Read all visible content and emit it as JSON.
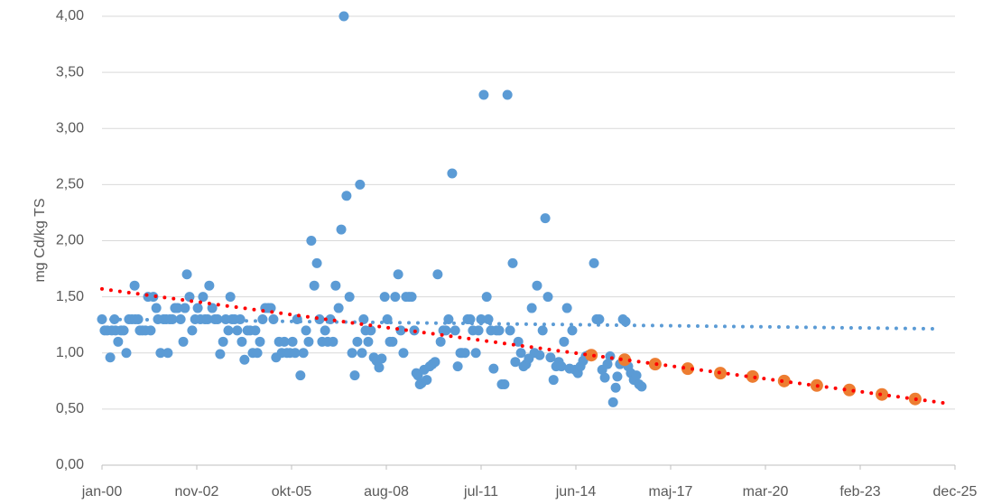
{
  "chart_data": {
    "type": "scatter",
    "y_label": "mg Cd/kg TS",
    "xlim": [
      2000,
      2025.92
    ],
    "ylim": [
      0,
      4
    ],
    "xticks": [
      {
        "value": 2000,
        "label": "jan-00"
      },
      {
        "value": 2002.88,
        "label": "nov-02"
      },
      {
        "value": 2005.76,
        "label": "okt-05"
      },
      {
        "value": 2008.64,
        "label": "aug-08"
      },
      {
        "value": 2011.52,
        "label": "jul-11"
      },
      {
        "value": 2014.4,
        "label": "jun-14"
      },
      {
        "value": 2017.28,
        "label": "maj-17"
      },
      {
        "value": 2020.16,
        "label": "mar-20"
      },
      {
        "value": 2023.04,
        "label": "feb-23"
      },
      {
        "value": 2025.92,
        "label": "dec-25"
      }
    ],
    "yticks": [
      {
        "value": 0,
        "label": "0,00"
      },
      {
        "value": 0.5,
        "label": "0,50"
      },
      {
        "value": 1,
        "label": "1,00"
      },
      {
        "value": 1.5,
        "label": "1,50"
      },
      {
        "value": 2,
        "label": "2,00"
      },
      {
        "value": 2.5,
        "label": "2,50"
      },
      {
        "value": 3,
        "label": "3,00"
      },
      {
        "value": 3.5,
        "label": "3,50"
      },
      {
        "value": 4,
        "label": "4,00"
      }
    ],
    "grid": true,
    "series": [
      {
        "mode": "markers",
        "color": "#5b9bd5",
        "x": [
          2000.0,
          2000.08,
          2000.16,
          2000.25,
          2000.3,
          2000.38,
          2000.41,
          2000.49,
          2000.58,
          2000.66,
          2000.74,
          2000.82,
          2000.91,
          2000.99,
          2001.01,
          2001.1,
          2001.15,
          2001.23,
          2001.32,
          2001.4,
          2001.48,
          2001.56,
          2001.65,
          2001.7,
          2001.78,
          2001.87,
          2001.95,
          2002.0,
          2002.06,
          2002.14,
          2002.22,
          2002.3,
          2002.39,
          2002.47,
          2002.52,
          2002.58,
          2002.66,
          2002.74,
          2002.83,
          2002.91,
          2002.99,
          2003.07,
          2003.13,
          2003.21,
          2003.26,
          2003.35,
          2003.43,
          2003.51,
          2003.59,
          2003.68,
          2003.76,
          2003.84,
          2003.9,
          2003.95,
          2004.03,
          2004.11,
          2004.2,
          2004.25,
          2004.33,
          2004.42,
          2004.5,
          2004.58,
          2004.66,
          2004.72,
          2004.8,
          2004.88,
          2004.96,
          2005.05,
          2005.13,
          2005.21,
          2005.29,
          2005.38,
          2005.46,
          2005.54,
          2005.62,
          2005.71,
          2005.79,
          2005.87,
          2005.93,
          2006.03,
          2006.12,
          2006.2,
          2006.28,
          2006.36,
          2006.45,
          2006.53,
          2006.61,
          2006.69,
          2006.78,
          2006.86,
          2006.94,
          2007.02,
          2007.1,
          2007.19,
          2007.27,
          2007.35,
          2007.43,
          2007.52,
          2007.6,
          2007.68,
          2007.76,
          2007.84,
          2007.9,
          2007.95,
          2008.01,
          2008.09,
          2008.17,
          2008.26,
          2008.34,
          2008.42,
          2008.5,
          2008.59,
          2008.67,
          2008.75,
          2008.83,
          2008.91,
          2009.0,
          2009.08,
          2009.16,
          2009.24,
          2009.33,
          2009.41,
          2009.49,
          2009.55,
          2009.6,
          2009.66,
          2009.71,
          2009.79,
          2009.87,
          2009.96,
          2010.04,
          2010.12,
          2010.2,
          2010.29,
          2010.37,
          2010.45,
          2010.53,
          2010.64,
          2010.73,
          2010.81,
          2010.89,
          2010.94,
          2011.03,
          2011.11,
          2011.19,
          2011.27,
          2011.36,
          2011.44,
          2011.52,
          2011.6,
          2011.69,
          2011.74,
          2011.82,
          2011.9,
          2011.99,
          2012.07,
          2012.15,
          2012.23,
          2012.32,
          2012.4,
          2012.48,
          2012.56,
          2012.65,
          2012.73,
          2012.81,
          2012.89,
          2012.97,
          2013.06,
          2013.14,
          2013.22,
          2013.3,
          2013.39,
          2013.47,
          2013.55,
          2013.63,
          2013.72,
          2013.8,
          2013.88,
          2013.96,
          2014.04,
          2014.13,
          2014.21,
          2014.29,
          2014.37,
          2014.46,
          2014.54,
          2014.62,
          2014.7,
          2014.78,
          2014.87,
          2014.95,
          2015.03,
          2015.11,
          2015.2,
          2015.28,
          2015.36,
          2015.44,
          2015.53,
          2015.61,
          2015.66,
          2015.74,
          2015.83,
          2015.91,
          2015.99,
          2016.07,
          2016.16,
          2016.24,
          2016.32,
          2016.4
        ],
        "values": [
          1.3,
          1.2,
          1.2,
          0.96,
          1.2,
          1.3,
          1.2,
          1.1,
          1.2,
          1.2,
          1.0,
          1.3,
          1.3,
          1.6,
          1.3,
          1.3,
          1.2,
          1.2,
          1.2,
          1.5,
          1.2,
          1.5,
          1.4,
          1.3,
          1.0,
          1.3,
          1.3,
          1.0,
          1.3,
          1.3,
          1.4,
          1.4,
          1.3,
          1.1,
          1.4,
          1.7,
          1.5,
          1.2,
          1.3,
          1.4,
          1.3,
          1.5,
          1.3,
          1.3,
          1.6,
          1.4,
          1.3,
          1.3,
          0.99,
          1.1,
          1.3,
          1.2,
          1.5,
          1.3,
          1.3,
          1.2,
          1.3,
          1.1,
          0.94,
          1.2,
          1.2,
          1.0,
          1.2,
          1.0,
          1.1,
          1.3,
          1.4,
          1.4,
          1.4,
          1.3,
          0.96,
          1.1,
          1.0,
          1.1,
          1.0,
          1.0,
          1.1,
          1.0,
          1.3,
          0.8,
          1.0,
          1.2,
          1.1,
          2.0,
          1.6,
          1.8,
          1.3,
          1.1,
          1.2,
          1.1,
          1.3,
          1.1,
          1.6,
          1.4,
          2.1,
          4.0,
          2.4,
          1.5,
          1.0,
          0.8,
          1.1,
          2.5,
          1.0,
          1.3,
          1.2,
          1.1,
          1.2,
          0.96,
          0.93,
          0.87,
          0.95,
          1.5,
          1.3,
          1.1,
          1.1,
          1.5,
          1.7,
          1.2,
          1.0,
          1.5,
          1.5,
          1.5,
          1.2,
          0.82,
          0.8,
          0.72,
          0.73,
          0.85,
          0.76,
          0.88,
          0.9,
          0.92,
          1.7,
          1.1,
          1.2,
          1.2,
          1.3,
          2.6,
          1.2,
          0.88,
          1.0,
          1.0,
          1.0,
          1.3,
          1.3,
          1.2,
          1.0,
          1.2,
          1.3,
          3.3,
          1.5,
          1.3,
          1.2,
          0.86,
          1.2,
          1.2,
          0.72,
          0.72,
          3.3,
          1.2,
          1.8,
          0.92,
          1.1,
          1.0,
          0.88,
          0.9,
          0.95,
          1.4,
          1.0,
          1.6,
          0.98,
          1.2,
          2.2,
          1.5,
          0.96,
          0.76,
          0.88,
          0.92,
          0.88,
          1.1,
          1.4,
          0.86,
          1.2,
          0.85,
          0.82,
          0.88,
          0.93,
          0.97,
          0.98,
          0.99,
          1.8,
          1.3,
          1.3,
          0.85,
          0.78,
          0.9,
          0.97,
          0.56,
          0.69,
          0.79,
          0.9,
          1.3,
          1.28,
          0.88,
          0.82,
          0.76,
          0.8,
          0.72,
          0.7
        ]
      },
      {
        "mode": "dotted",
        "color": "#5b9bd5",
        "x": [
          2000,
          2025.4
        ],
        "values": [
          1.3,
          1.215
        ]
      },
      {
        "mode": "markers",
        "color": "#ed7d31",
        "x": [
          2014.87,
          2015.88,
          2016.81,
          2017.8,
          2018.79,
          2019.77,
          2020.73,
          2021.72,
          2022.71,
          2023.7,
          2024.71
        ],
        "values": [
          0.98,
          0.94,
          0.9,
          0.86,
          0.82,
          0.79,
          0.75,
          0.71,
          0.67,
          0.63,
          0.59
        ]
      },
      {
        "mode": "dotted",
        "color": "#ff0000",
        "x": [
          2000,
          2025.56
        ],
        "values": [
          1.57,
          0.555
        ]
      }
    ]
  }
}
